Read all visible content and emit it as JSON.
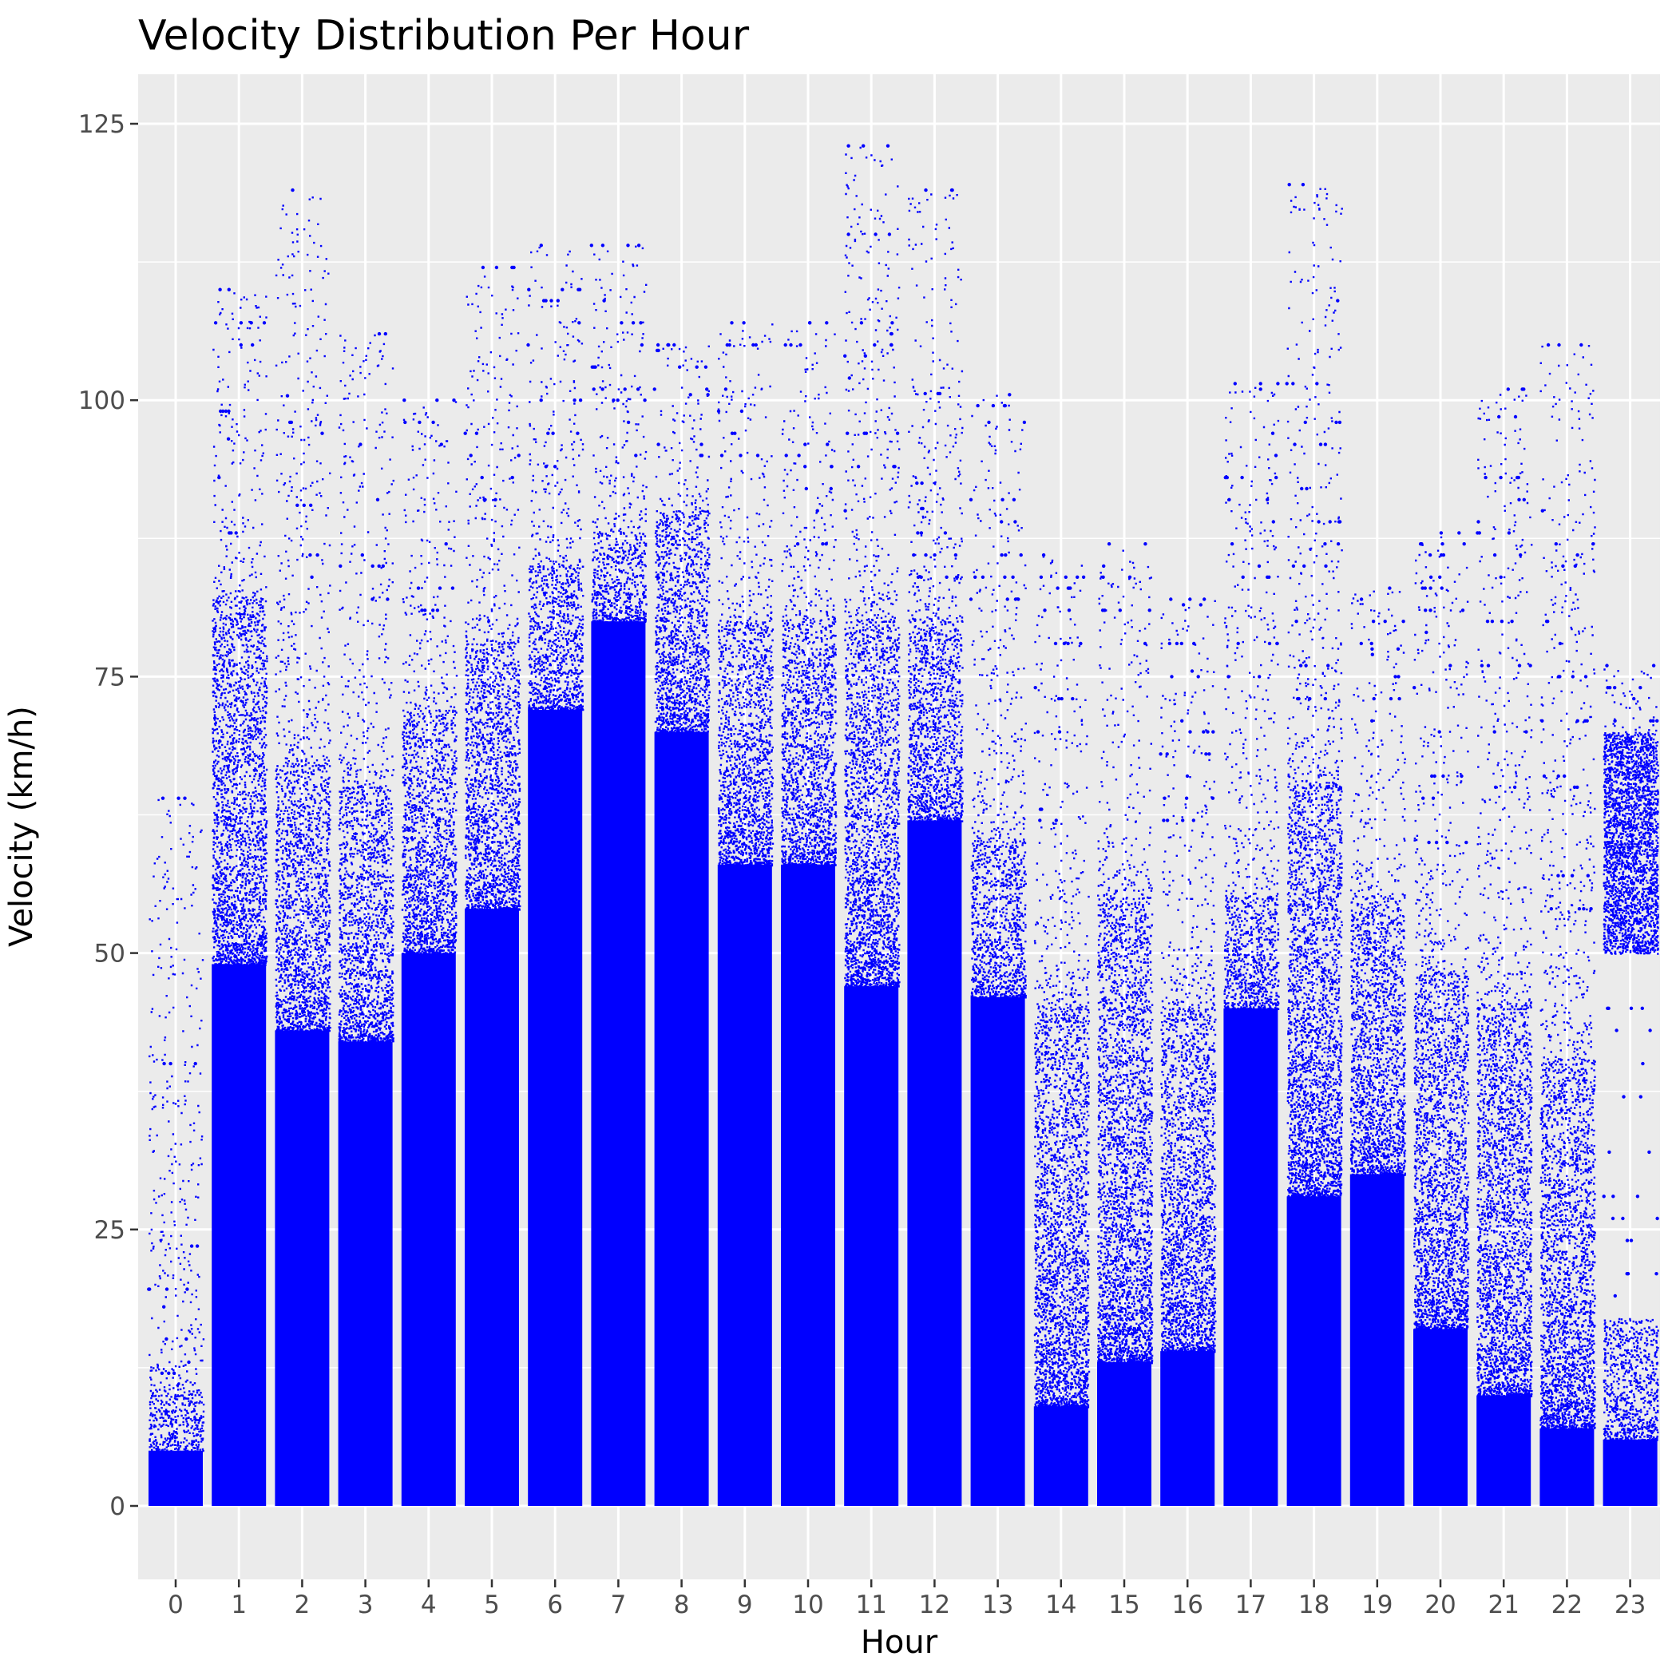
{
  "chart_data": {
    "type": "scatter",
    "title": "Velocity Distribution Per Hour",
    "xlabel": "Hour",
    "ylabel": "Velocity (km/h)",
    "x_ticks": [
      "0",
      "1",
      "2",
      "3",
      "4",
      "5",
      "6",
      "7",
      "8",
      "9",
      "10",
      "11",
      "12",
      "13",
      "14",
      "15",
      "16",
      "17",
      "18",
      "19",
      "20",
      "21",
      "22",
      "23"
    ],
    "y_ticks": [
      "0",
      "25",
      "50",
      "75",
      "100",
      "125"
    ],
    "ylim": [
      -6,
      130
    ],
    "grid": true,
    "legend": "none",
    "point_color": "#0000ff",
    "panel_color": "#ebebeb",
    "series": [
      {
        "hour": 0,
        "dense_max": 5,
        "mid_max": 10,
        "max": 64,
        "outliers": [
          64,
          40,
          23.5,
          19.6,
          18,
          15.1,
          13,
          12
        ]
      },
      {
        "hour": 1,
        "dense_max": 49,
        "mid_max": 82,
        "max": 110,
        "outliers": [
          110,
          107,
          105,
          99,
          96.5,
          93,
          88
        ]
      },
      {
        "hour": 2,
        "dense_max": 43,
        "mid_max": 67,
        "max": 119,
        "outliers": [
          119,
          100.4,
          98,
          97,
          90.5,
          86,
          84
        ]
      },
      {
        "hour": 3,
        "dense_max": 42,
        "mid_max": 65,
        "max": 106,
        "outliers": [
          106,
          96,
          91,
          86,
          85,
          82
        ]
      },
      {
        "hour": 4,
        "dense_max": 50,
        "mid_max": 72,
        "max": 100,
        "outliers": [
          100,
          98,
          96,
          87,
          83,
          81
        ]
      },
      {
        "hour": 5,
        "dense_max": 54,
        "mid_max": 78,
        "max": 112,
        "outliers": [
          112,
          97,
          95,
          93,
          91
        ]
      },
      {
        "hour": 6,
        "dense_max": 72,
        "mid_max": 85,
        "max": 114,
        "outliers": [
          114,
          110,
          109,
          107,
          105,
          100,
          97,
          94
        ]
      },
      {
        "hour": 7,
        "dense_max": 80,
        "mid_max": 88,
        "max": 114,
        "outliers": [
          114,
          109,
          107,
          105,
          103,
          101,
          100,
          98,
          95
        ]
      },
      {
        "hour": 8,
        "dense_max": 70,
        "mid_max": 90,
        "max": 105,
        "outliers": [
          105,
          104.5,
          103,
          101,
          100.5,
          96,
          95
        ]
      },
      {
        "hour": 9,
        "dense_max": 58,
        "mid_max": 80,
        "max": 107,
        "outliers": [
          107,
          105,
          101,
          99,
          97,
          95
        ]
      },
      {
        "hour": 10,
        "dense_max": 58,
        "mid_max": 80,
        "max": 107,
        "outliers": [
          107,
          105,
          96,
          95,
          94,
          92,
          90,
          87
        ]
      },
      {
        "hour": 11,
        "dense_max": 47,
        "mid_max": 80,
        "max": 123,
        "outliers": [
          123,
          115,
          107,
          106,
          105,
          104,
          102,
          97,
          94,
          90
        ]
      },
      {
        "hour": 12,
        "dense_max": 62,
        "mid_max": 80,
        "max": 119,
        "outliers": [
          119,
          100.6,
          92.5,
          90.2,
          88,
          86,
          84
        ]
      },
      {
        "hour": 13,
        "dense_max": 46,
        "mid_max": 60,
        "max": 100.5,
        "outliers": [
          100.5,
          99.5,
          98,
          91,
          89,
          86,
          84,
          82
        ]
      },
      {
        "hour": 14,
        "dense_max": 9,
        "mid_max": 45,
        "max": 86,
        "outliers": [
          86,
          84,
          83,
          81,
          78,
          74,
          73,
          70,
          63,
          62
        ]
      },
      {
        "hour": 15,
        "dense_max": 13,
        "mid_max": 55,
        "max": 87,
        "outliers": [
          87,
          85,
          84,
          81,
          78
        ]
      },
      {
        "hour": 16,
        "dense_max": 14,
        "mid_max": 45,
        "max": 82,
        "outliers": [
          82,
          81.5,
          78,
          75.5,
          75,
          71,
          70,
          68,
          66,
          64,
          62
        ]
      },
      {
        "hour": 17,
        "dense_max": 45,
        "mid_max": 55,
        "max": 101.5,
        "outliers": [
          101.5,
          101,
          97,
          95,
          93,
          91,
          89,
          87,
          85,
          84,
          78,
          75
        ]
      },
      {
        "hour": 18,
        "dense_max": 28,
        "mid_max": 65,
        "max": 119.5,
        "outliers": [
          119.5,
          109,
          101.5,
          98,
          96,
          92,
          89,
          87,
          85,
          80,
          76,
          73
        ]
      },
      {
        "hour": 19,
        "dense_max": 30,
        "mid_max": 55,
        "max": 83,
        "outliers": [
          83,
          82,
          80,
          78,
          77.5,
          77,
          75,
          73,
          71
        ]
      },
      {
        "hour": 20,
        "dense_max": 16,
        "mid_max": 48,
        "max": 88,
        "outliers": [
          88,
          87,
          86,
          84,
          83,
          81,
          79,
          76,
          74,
          70,
          66,
          64,
          60
        ]
      },
      {
        "hour": 21,
        "dense_max": 10,
        "mid_max": 45,
        "max": 101,
        "outliers": [
          101,
          98.5,
          93,
          91,
          89,
          88,
          86,
          84,
          80,
          76,
          70,
          65
        ]
      },
      {
        "hour": 22,
        "dense_max": 7,
        "mid_max": 40,
        "max": 105,
        "outliers": [
          105,
          90,
          87,
          86,
          85,
          80,
          78,
          75,
          71,
          66,
          65,
          57,
          54
        ]
      },
      {
        "hour": 23,
        "dense_max": 6,
        "mid_max": 17,
        "band": [
          50,
          70
        ],
        "max": 76,
        "outliers": [
          76,
          74,
          73,
          71,
          45,
          43,
          40,
          37,
          32,
          28,
          26,
          24,
          21,
          19
        ]
      }
    ]
  }
}
